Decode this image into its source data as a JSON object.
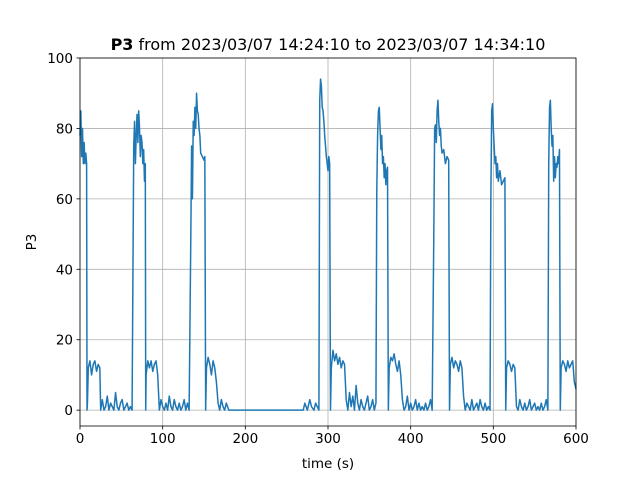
{
  "chart_data": {
    "type": "line",
    "title": [
      "P3",
      "from 2023/03/07 14:24:10 to 2023/03/07 14:34:10"
    ],
    "xlabel": "time (s)",
    "ylabel": "P3",
    "color": "#1f77b4",
    "grid": true,
    "xlim": [
      0,
      600
    ],
    "ylim": [
      -4.5,
      100
    ],
    "xticks": [
      0,
      100,
      200,
      300,
      400,
      500,
      600
    ],
    "yticks": [
      0,
      20,
      40,
      60,
      80,
      100
    ],
    "x": [
      0,
      1,
      2,
      3,
      4,
      5,
      6,
      7,
      8,
      8.5,
      9,
      10,
      12,
      14,
      16,
      18,
      20,
      22,
      24,
      25,
      27,
      29,
      31,
      33,
      35,
      37,
      39,
      41,
      43,
      45,
      47,
      49,
      51,
      53,
      55,
      57,
      59,
      61,
      63,
      65,
      66,
      67,
      68,
      69,
      70,
      71,
      72,
      73,
      74,
      75,
      76,
      77,
      78,
      79,
      79.5,
      80,
      82,
      84,
      86,
      88,
      90,
      92,
      94,
      96,
      98,
      100,
      102,
      104,
      106,
      108,
      110,
      112,
      114,
      116,
      118,
      120,
      122,
      124,
      126,
      128,
      130,
      132,
      134,
      135,
      136,
      137,
      138,
      139,
      140,
      141,
      142,
      143,
      144,
      145,
      146,
      148,
      150,
      151,
      152,
      153,
      155,
      157,
      159,
      161,
      163,
      165,
      167,
      169,
      171,
      173,
      175,
      177,
      180,
      200,
      220,
      240,
      260,
      270,
      272,
      275,
      278,
      280,
      283,
      285,
      287,
      289,
      290,
      291,
      292,
      293,
      294,
      295,
      296,
      297,
      298,
      299,
      300,
      301,
      302,
      303,
      304,
      306,
      308,
      310,
      312,
      314,
      316,
      318,
      320,
      322,
      324,
      326,
      328,
      330,
      332,
      334,
      336,
      338,
      340,
      342,
      344,
      346,
      348,
      350,
      352,
      354,
      356,
      358,
      359,
      360,
      361,
      362,
      363,
      364,
      365,
      366,
      367,
      368,
      369,
      370,
      371,
      372,
      373,
      374,
      376,
      378,
      380,
      382,
      384,
      386,
      388,
      390,
      392,
      394,
      396,
      398,
      400,
      402,
      404,
      406,
      408,
      410,
      412,
      414,
      416,
      418,
      420,
      422,
      424,
      426,
      428,
      429,
      430,
      431,
      432,
      433,
      434,
      435,
      436,
      437,
      438,
      440,
      442,
      444,
      446,
      447,
      448,
      450,
      452,
      454,
      456,
      458,
      460,
      462,
      464,
      466,
      468,
      470,
      472,
      474,
      476,
      478,
      480,
      482,
      484,
      486,
      488,
      490,
      492,
      494,
      496,
      497,
      498,
      499,
      500,
      501,
      502,
      503,
      504,
      505,
      506,
      508,
      510,
      512,
      514,
      515,
      516,
      518,
      520,
      522,
      524,
      526,
      528,
      530,
      532,
      534,
      536,
      538,
      540,
      542,
      544,
      546,
      548,
      550,
      552,
      554,
      556,
      558,
      560,
      562,
      564,
      566,
      567,
      568,
      569,
      570,
      571,
      572,
      573,
      574,
      575,
      576,
      577,
      578,
      579,
      580,
      581,
      582,
      584,
      586,
      588,
      590,
      592,
      594,
      596,
      598,
      600
    ],
    "values": [
      78,
      85,
      72,
      80,
      70,
      76,
      70,
      73,
      70,
      0,
      2,
      12,
      14,
      10,
      13,
      14,
      11,
      13,
      12,
      0,
      3,
      0,
      1,
      4,
      0,
      2,
      1,
      0,
      5,
      1,
      0,
      2,
      3,
      0,
      1,
      2,
      0,
      1,
      0,
      75,
      82,
      70,
      78,
      84,
      76,
      85,
      80,
      72,
      78,
      76,
      70,
      74,
      65,
      70,
      0,
      10,
      14,
      12,
      14,
      11,
      13,
      14,
      10,
      0,
      3,
      1,
      0,
      2,
      0,
      4,
      1,
      0,
      3,
      1,
      0,
      2,
      0,
      1,
      3,
      0,
      2,
      0,
      48,
      75,
      60,
      82,
      78,
      86,
      80,
      90,
      85,
      84,
      80,
      78,
      73,
      72,
      71,
      72,
      0,
      12,
      15,
      13,
      10,
      14,
      12,
      8,
      2,
      0,
      3,
      1,
      0,
      2,
      0,
      0,
      0,
      0,
      0,
      0,
      2,
      0,
      3,
      1,
      0,
      2,
      1,
      0,
      88,
      94,
      92,
      86,
      85,
      82,
      78,
      75,
      72,
      70,
      68,
      72,
      70,
      0,
      12,
      17,
      14,
      16,
      13,
      15,
      12,
      14,
      13,
      3,
      0,
      5,
      1,
      4,
      0,
      7,
      2,
      0,
      3,
      1,
      0,
      2,
      4,
      0,
      1,
      3,
      0,
      2,
      62,
      78,
      85,
      86,
      80,
      74,
      78,
      70,
      72,
      66,
      70,
      64,
      68,
      69,
      0,
      12,
      15,
      14,
      16,
      13,
      11,
      14,
      10,
      3,
      0,
      1,
      4,
      0,
      2,
      0,
      1,
      3,
      0,
      2,
      0,
      1,
      0,
      2,
      0,
      1,
      3,
      0,
      50,
      80,
      81,
      76,
      85,
      88,
      82,
      78,
      80,
      75,
      73,
      74,
      70,
      72,
      71,
      0,
      13,
      15,
      12,
      14,
      13,
      11,
      14,
      12,
      4,
      0,
      2,
      1,
      0,
      3,
      0,
      1,
      2,
      0,
      3,
      1,
      0,
      2,
      0,
      1,
      0,
      60,
      85,
      87,
      80,
      75,
      70,
      72,
      66,
      70,
      65,
      68,
      64,
      65,
      66,
      0,
      12,
      14,
      13,
      11,
      13,
      12,
      1,
      0,
      3,
      1,
      0,
      2,
      0,
      1,
      3,
      0,
      1,
      2,
      0,
      1,
      0,
      2,
      0,
      1,
      3,
      0,
      70,
      86,
      88,
      80,
      75,
      78,
      65,
      72,
      66,
      70,
      69,
      72,
      70,
      74,
      0,
      12,
      14,
      13,
      11,
      14,
      12,
      13,
      14,
      8,
      6
    ]
  }
}
